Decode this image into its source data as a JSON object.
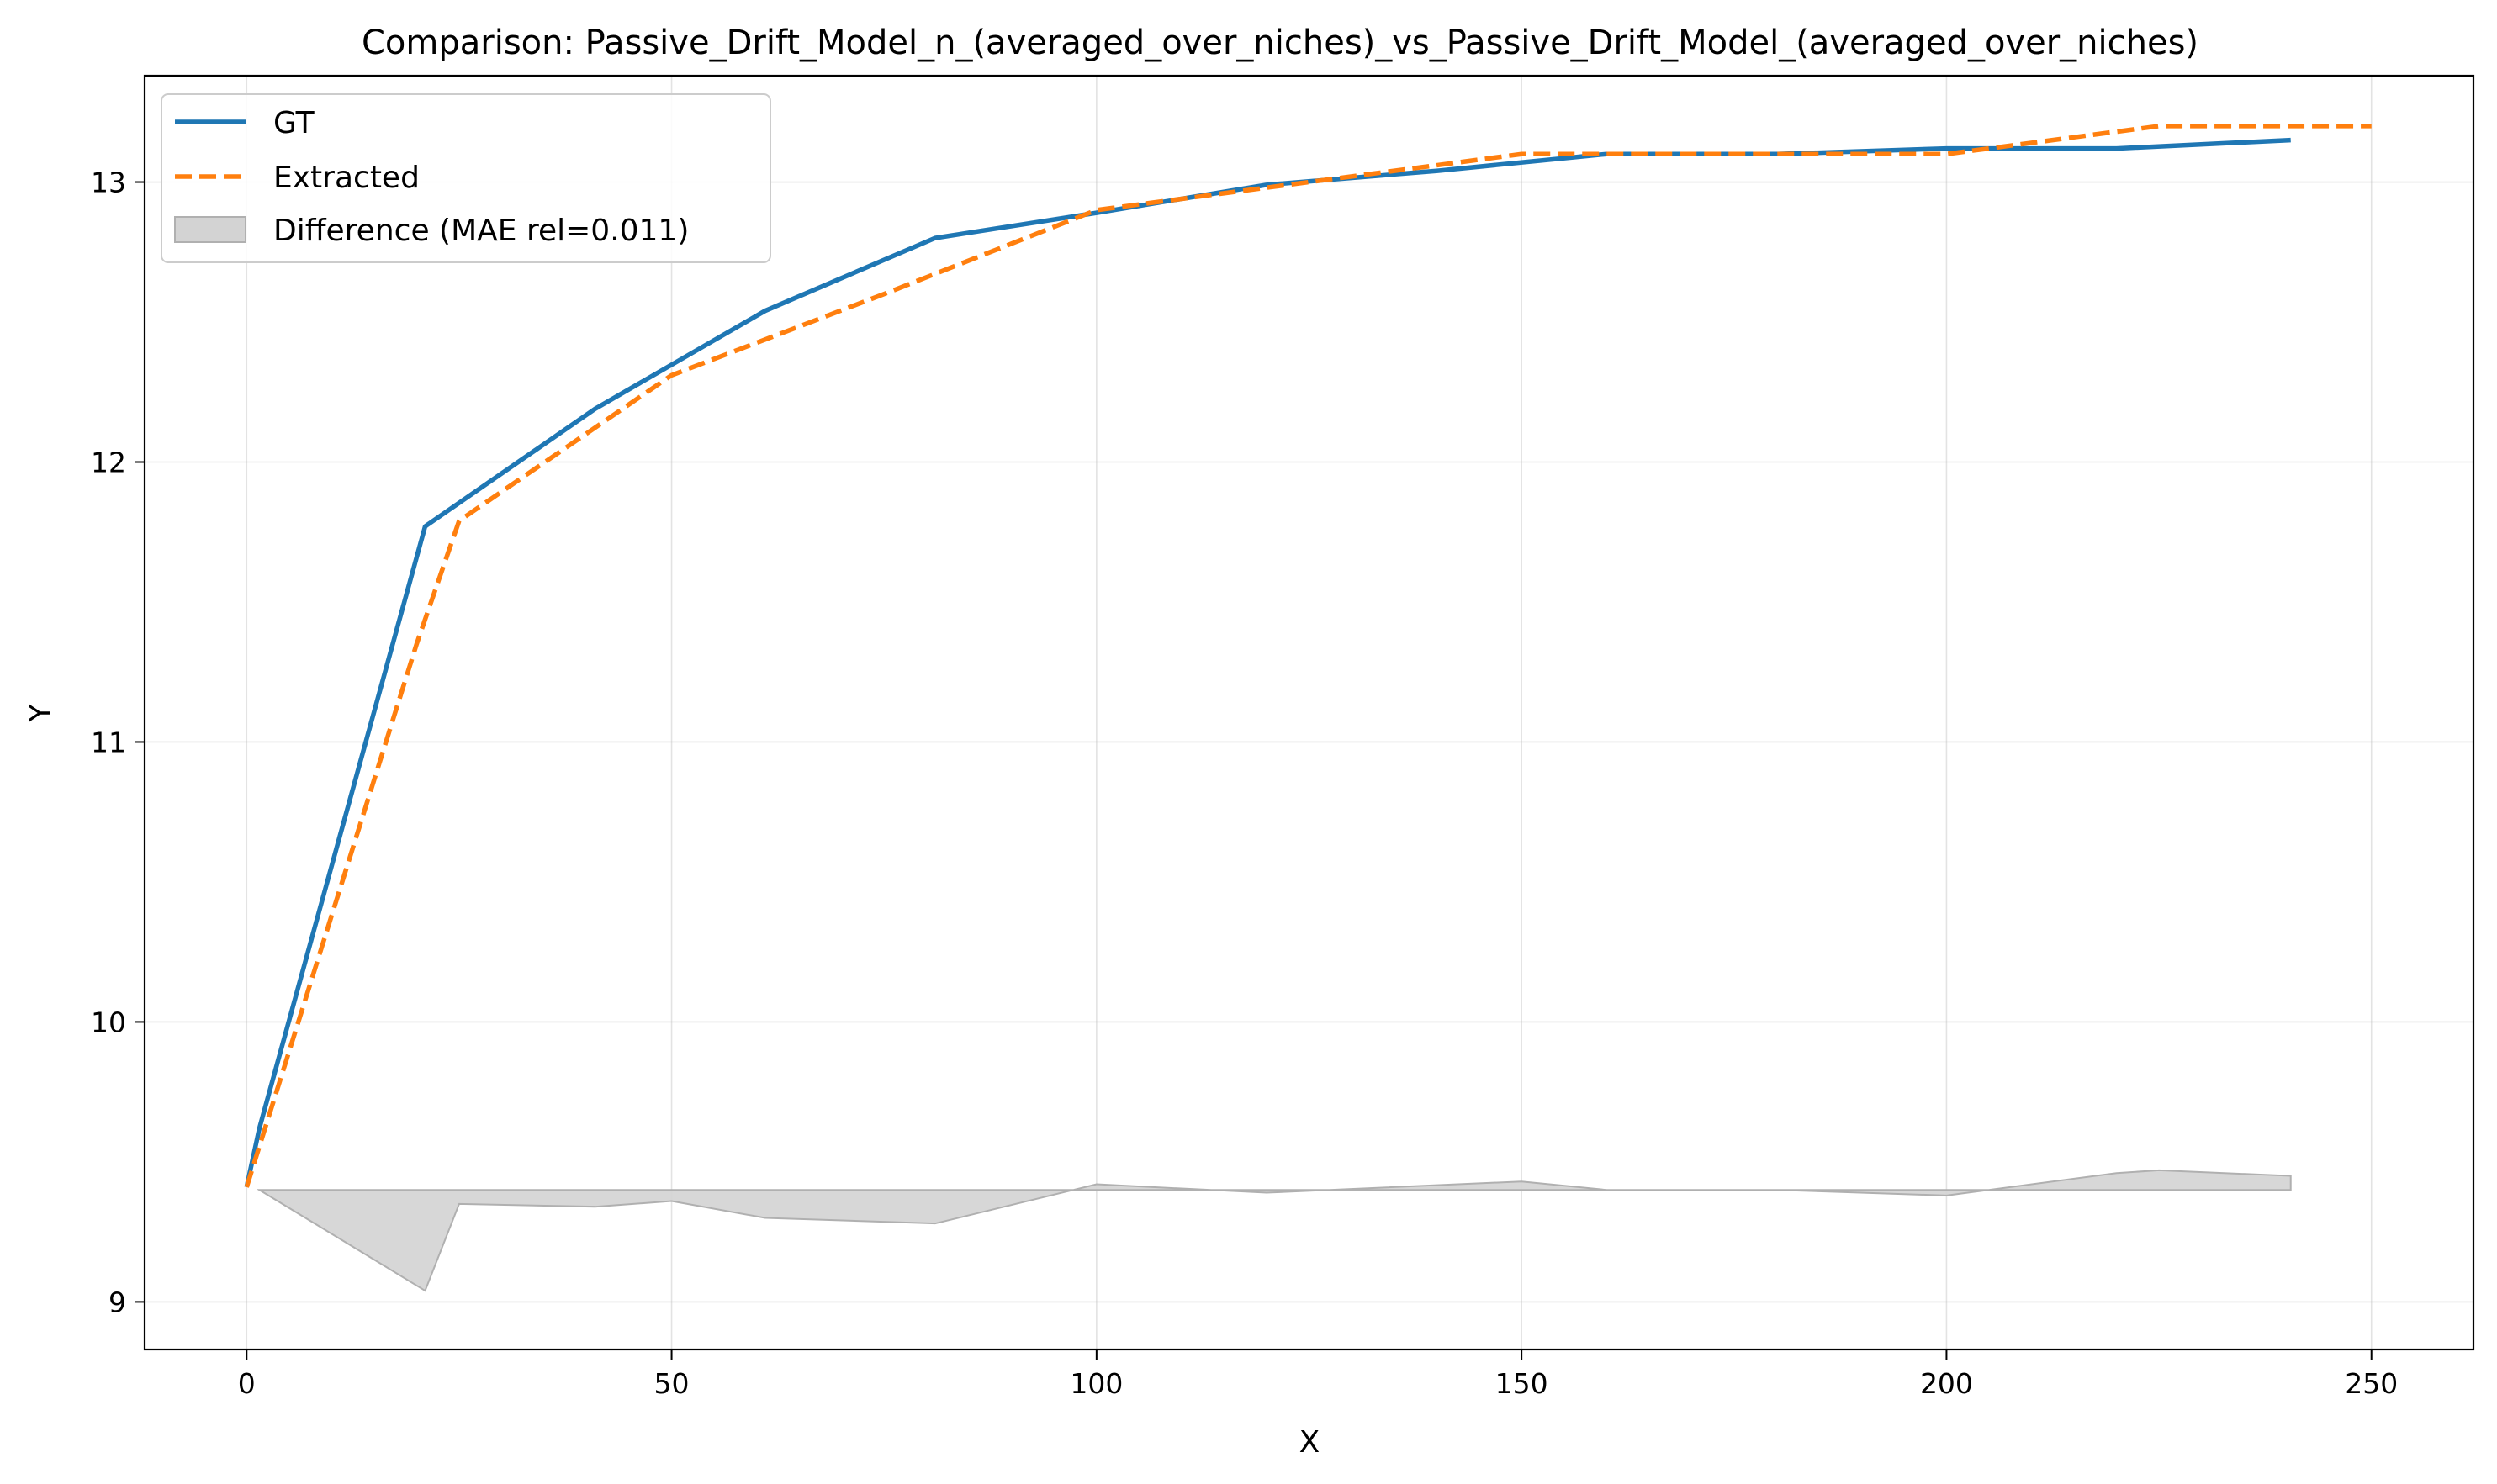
{
  "chart_data": {
    "type": "line",
    "title": "Comparison: Passive_Drift_Model_n_(averaged_over_niches)_vs_Passive_Drift_Model_(averaged_over_niches)",
    "xlabel": "X",
    "ylabel": "Y",
    "xlim": [
      -12,
      262
    ],
    "ylim": [
      8.83,
      13.38
    ],
    "xticks": [
      0,
      50,
      100,
      150,
      200,
      250
    ],
    "yticks": [
      9,
      10,
      11,
      12,
      13
    ],
    "grid": true,
    "legend_position": "top-left",
    "series": [
      {
        "name": "GT",
        "color": "#1f77b4",
        "style": "solid",
        "x": [
          0,
          1.5,
          21,
          41,
          61,
          81,
          100,
          120,
          140,
          160,
          180,
          200,
          220,
          240.5
        ],
        "y": [
          9.41,
          9.62,
          11.77,
          12.19,
          12.54,
          12.8,
          12.89,
          12.99,
          13.04,
          13.1,
          13.1,
          13.12,
          13.12,
          13.15
        ]
      },
      {
        "name": "Extracted",
        "color": "#ff7f0e",
        "style": "dashed",
        "x": [
          0,
          20,
          25,
          50,
          75,
          100,
          125,
          150,
          175,
          200,
          225,
          250
        ],
        "y": [
          9.41,
          11.35,
          11.79,
          12.31,
          12.6,
          12.9,
          13.0,
          13.1,
          13.1,
          13.1,
          13.2,
          13.2
        ]
      }
    ],
    "difference": {
      "name": "Difference (MAE rel=0.011)",
      "color": "#d3d3d3",
      "edge_color": "#b0b0b0",
      "baseline": 9.4,
      "x": [
        1.5,
        21,
        25,
        41,
        50,
        61,
        81,
        100,
        120,
        150,
        160,
        180,
        200,
        220,
        225,
        240.5
      ],
      "y": [
        9.4,
        9.04,
        9.35,
        9.34,
        9.36,
        9.3,
        9.28,
        9.42,
        9.39,
        9.43,
        9.4,
        9.4,
        9.38,
        9.46,
        9.47,
        9.45
      ]
    }
  }
}
